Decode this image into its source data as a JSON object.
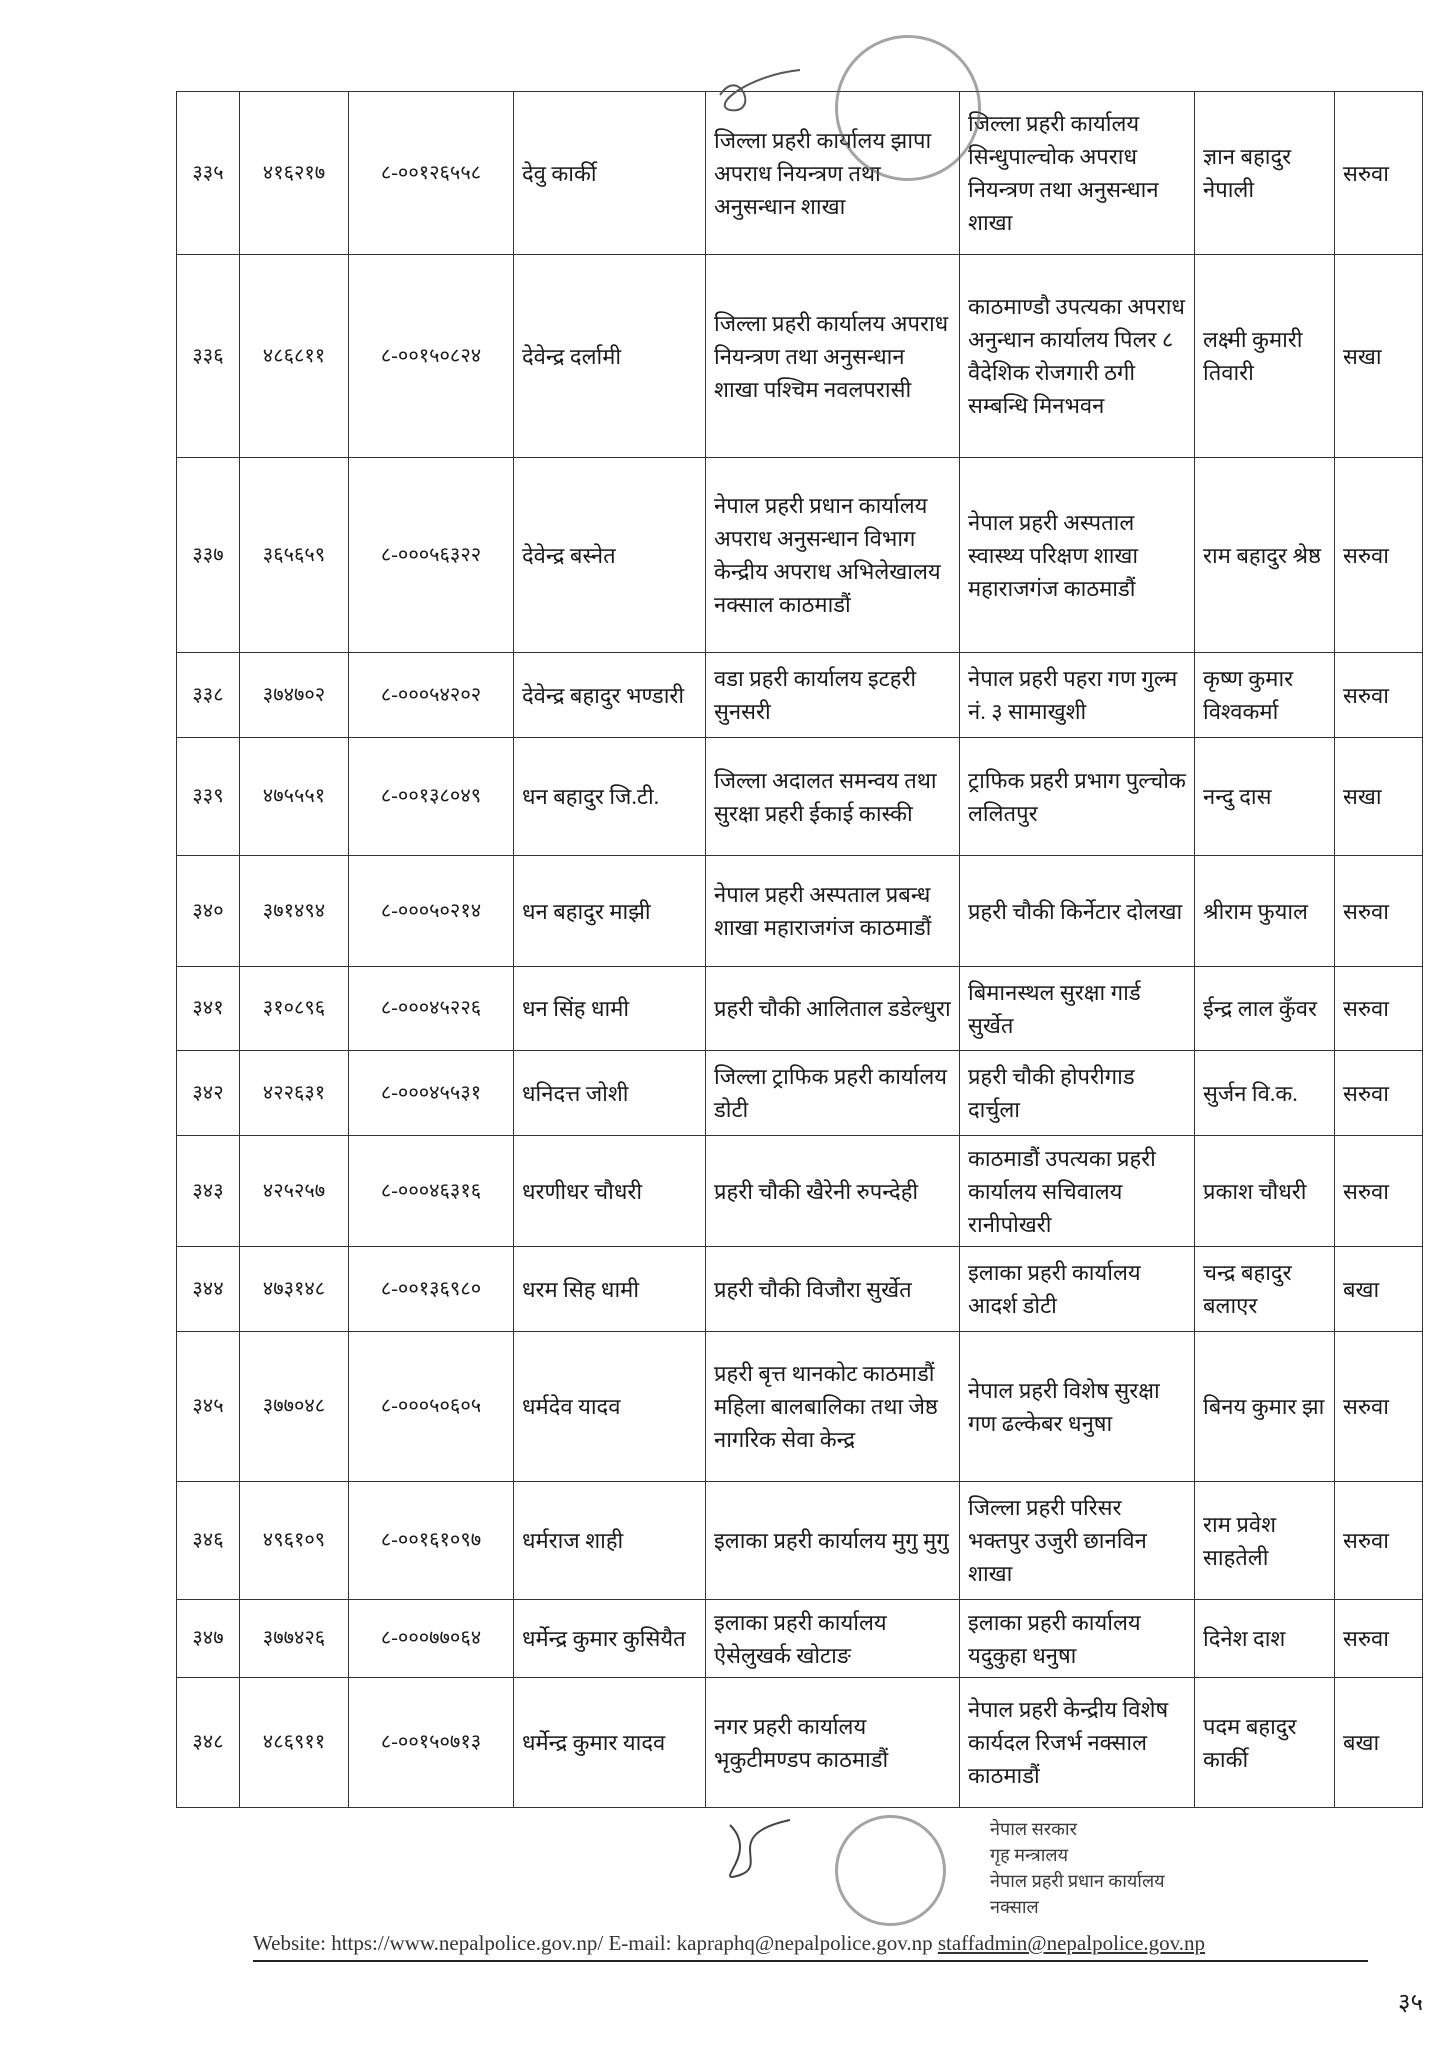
{
  "table": {
    "rows": [
      [
        "३३५",
        "४१६२१७",
        "८-००१२६५५८",
        "देवु कार्की",
        "जिल्ला प्रहरी कार्यालय झापा अपराध नियन्त्रण तथा अनुसन्धान शाखा",
        "जिल्ला प्रहरी कार्यालय सिन्धुपाल्चोक अपराध नियन्त्रण तथा अनुसन्धान शाखा",
        "ज्ञान बहादुर नेपाली",
        "सरुवा"
      ],
      [
        "३३६",
        "४८६८११",
        "८-००१५०८२४",
        "देवेन्द्र दर्लामी",
        "जिल्ला प्रहरी कार्यालय अपराध नियन्त्रण तथा अनुसन्धान शाखा पश्चिम नवलपरासी",
        "काठमाण्डौ उपत्यका अपराध अनुन्धान कार्यालय पिलर ८ वैदेशिक रोजगारी ठगी सम्बन्धि मिनभवन",
        "लक्ष्मी कुमारी तिवारी",
        "सखा"
      ],
      [
        "३३७",
        "३६५६५९",
        "८-०००५६३२२",
        "देवेन्द्र बस्नेत",
        "नेपाल प्रहरी प्रधान कार्यालय अपराध अनुसन्धान विभाग केन्द्रीय अपराध अभिलेखालय नक्साल काठमाडौं",
        "नेपाल प्रहरी अस्पताल स्वास्थ्य परिक्षण शाखा महाराजगंज काठमाडौं",
        "राम बहादुर श्रेष्ठ",
        "सरुवा"
      ],
      [
        "३३८",
        "३७४७०२",
        "८-०००५४२०२",
        "देवेन्द्र बहादुर भण्डारी",
        "वडा प्रहरी कार्यालय इटहरी सुनसरी",
        "नेपाल प्रहरी पहरा गण गुल्म नं. ३ सामाखुशी",
        "कृष्ण कुमार विश्वकर्मा",
        "सरुवा"
      ],
      [
        "३३९",
        "४७५५५१",
        "८-००१३८०४९",
        "धन बहादुर जि.टी.",
        "जिल्ला अदालत समन्वय तथा सुरक्षा प्रहरी ईकाई कास्की",
        "ट्राफिक प्रहरी प्रभाग पुल्चोक ललितपुर",
        "नन्दु दास",
        "सखा"
      ],
      [
        "३४०",
        "३७१४९४",
        "८-०००५०२१४",
        "धन बहादुर माझी",
        "नेपाल प्रहरी अस्पताल प्रबन्ध शाखा महाराजगंज काठमाडौं",
        "प्रहरी चौकी किर्नेटार दोलखा",
        "श्रीराम फुयाल",
        "सरुवा"
      ],
      [
        "३४१",
        "३१०८९६",
        "८-०००४५२२६",
        "धन सिंह धामी",
        "प्रहरी चौकी आलिताल डडेल्धुरा",
        "बिमानस्थल सुरक्षा गार्ड सुर्खेत",
        "ईन्द्र लाल कुँवर",
        "सरुवा"
      ],
      [
        "३४२",
        "४२२६३१",
        "८-०००४५५३१",
        "धनिदत्त जोशी",
        "जिल्ला ट्राफिक प्रहरी कार्यालय डोटी",
        "प्रहरी चौकी होपरीगाड दार्चुला",
        "सुर्जन वि.क.",
        "सरुवा"
      ],
      [
        "३४३",
        "४२५२५७",
        "८-०००४६३१६",
        "धरणीधर चौधरी",
        "प्रहरी चौकी खैरेनी रुपन्देही",
        "काठमाडौं उपत्यका प्रहरी कार्यालय सचिवालय रानीपोखरी",
        "प्रकाश चौधरी",
        "सरुवा"
      ],
      [
        "३४४",
        "४७३१४८",
        "८-००१३६९८०",
        "धरम सिह धामी",
        "प्रहरी चौकी विजौरा सुर्खेत",
        "इलाका प्रहरी कार्यालय आदर्श डोटी",
        "चन्द्र बहादुर बलाएर",
        "बखा"
      ],
      [
        "३४५",
        "३७७०४८",
        "८-०००५०६०५",
        "धर्मदेव यादव",
        "प्रहरी बृत्त थानकोट काठमाडौं महिला बालबालिका तथा जेष्ठ नागरिक सेवा केन्द्र",
        "नेपाल प्रहरी विशेष सुरक्षा गण ढल्केबर धनुषा",
        "बिनय कुमार झा",
        "सरुवा"
      ],
      [
        "३४६",
        "४९६१०९",
        "८-००१६१०९७",
        "धर्मराज शाही",
        "इलाका प्रहरी कार्यालय मुगु मुगु",
        "जिल्ला प्रहरी परिसर भक्तपुर उजुरी छानविन शाखा",
        "राम प्रवेश साहतेली",
        "सरुवा"
      ],
      [
        "३४७",
        "३७७४२६",
        "८-०००७७०६४",
        "धर्मेन्द्र कुमार कुसियैत",
        "इलाका प्रहरी कार्यालय ऐसेलुखर्क खोटाङ",
        "इलाका प्रहरी कार्यालय यदुकुहा धनुषा",
        "दिनेश दाश",
        "सरुवा"
      ],
      [
        "३४८",
        "४८६९११",
        "८-००१५०७१३",
        "धर्मेन्द्र कुमार यादव",
        "नगर प्रहरी कार्यालय भृकुटीमण्डप काठमाडौं",
        "नेपाल प्रहरी केन्द्रीय विशेष कार्यदल रिजर्भ नक्साल काठमाडौं",
        "पदम बहादुर कार्की",
        "बखा"
      ]
    ]
  },
  "seal": {
    "lines": [
      "नेपाल सरकार",
      "गृह मन्त्रालय",
      "नेपाल प्रहरी प्रधान कार्यालय",
      "नक्साल"
    ]
  },
  "footer": {
    "website_label": "Website: https://www.nepalpolice.gov.np/",
    "email_label": "E-mail: kapraphq@nepalpolice.gov.np",
    "email2": "staffadmin@nepalpolice.gov.np"
  },
  "page_number": "३५"
}
